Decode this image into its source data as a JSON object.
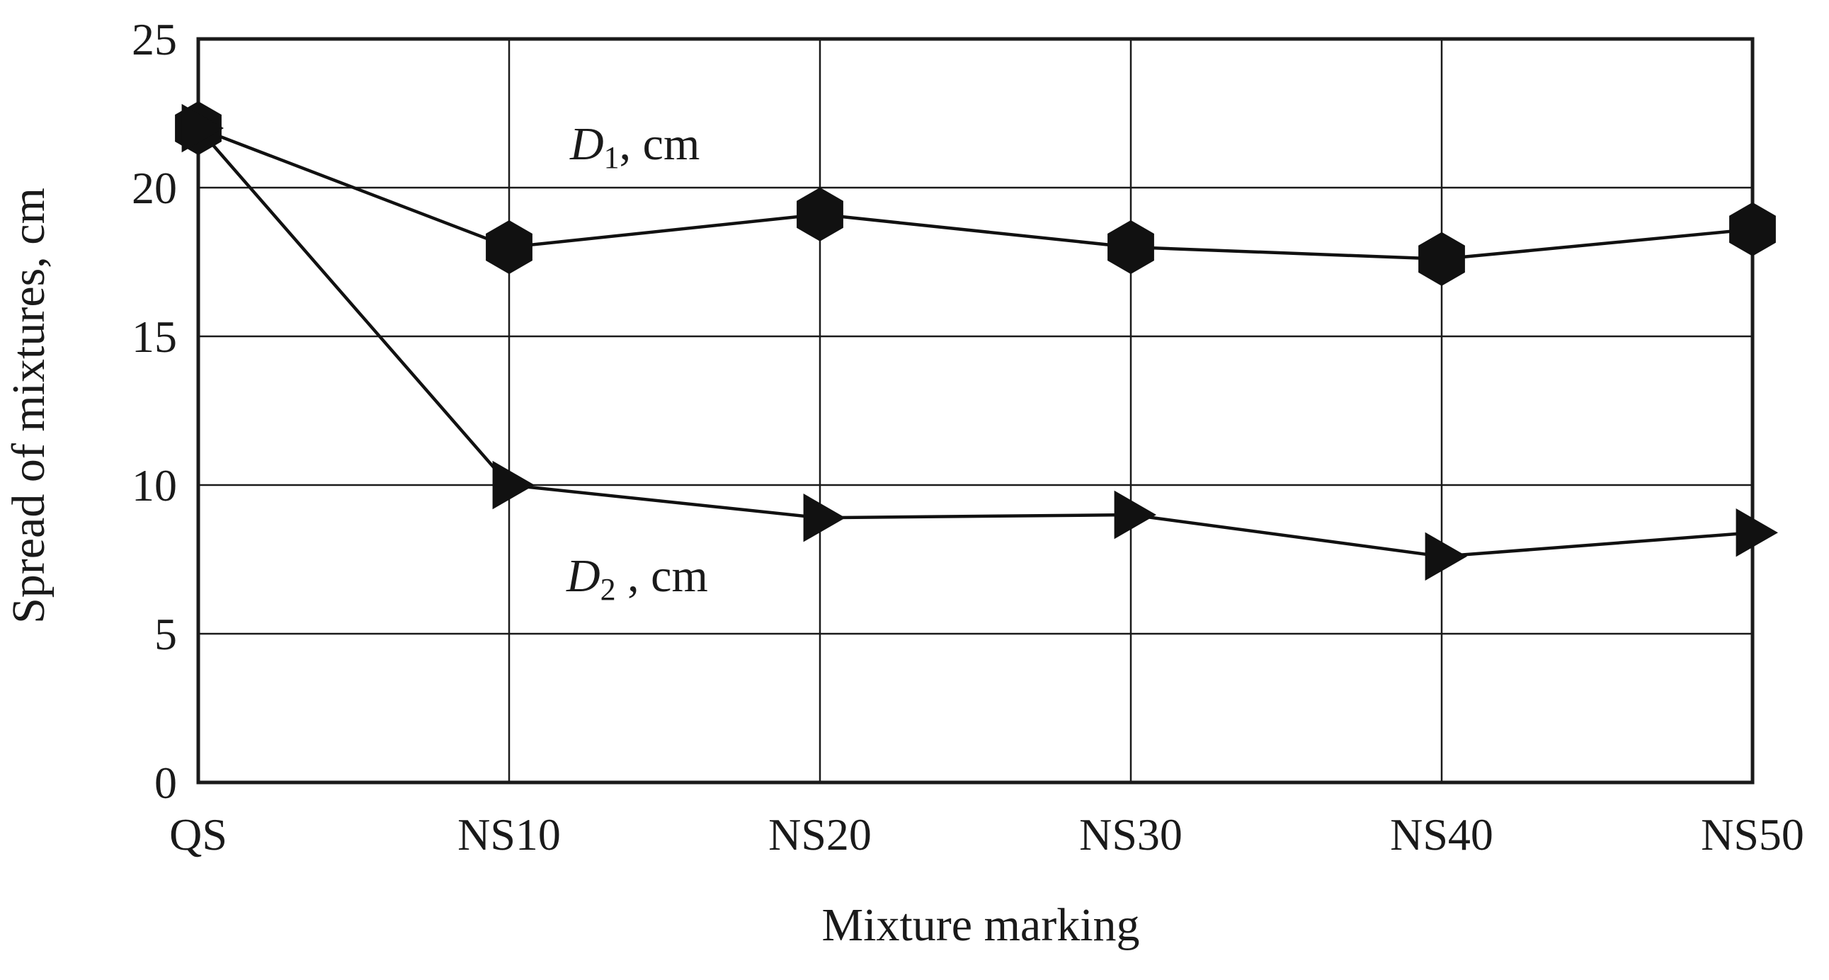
{
  "chart_data": {
    "type": "line",
    "title": "",
    "xlabel": "Mixture marking",
    "ylabel": "Spread of mixtures, cm",
    "categories": [
      "QS",
      "NS10",
      "NS20",
      "NS30",
      "NS40",
      "NS50"
    ],
    "ylim": [
      0,
      25
    ],
    "yticks": [
      0,
      5,
      10,
      15,
      20,
      25
    ],
    "grid": true,
    "series": [
      {
        "symbol": "D",
        "subscript": "1",
        "unit": ", cm",
        "marker": "hexagon",
        "color": "#111111",
        "values": [
          22.0,
          18.0,
          19.1,
          18.0,
          17.6,
          18.6
        ]
      },
      {
        "symbol": "D",
        "subscript": "2",
        "unit": " , cm",
        "marker": "triangle-right",
        "color": "#111111",
        "values": [
          22.0,
          10.0,
          8.9,
          9.0,
          7.6,
          8.4
        ]
      }
    ]
  }
}
